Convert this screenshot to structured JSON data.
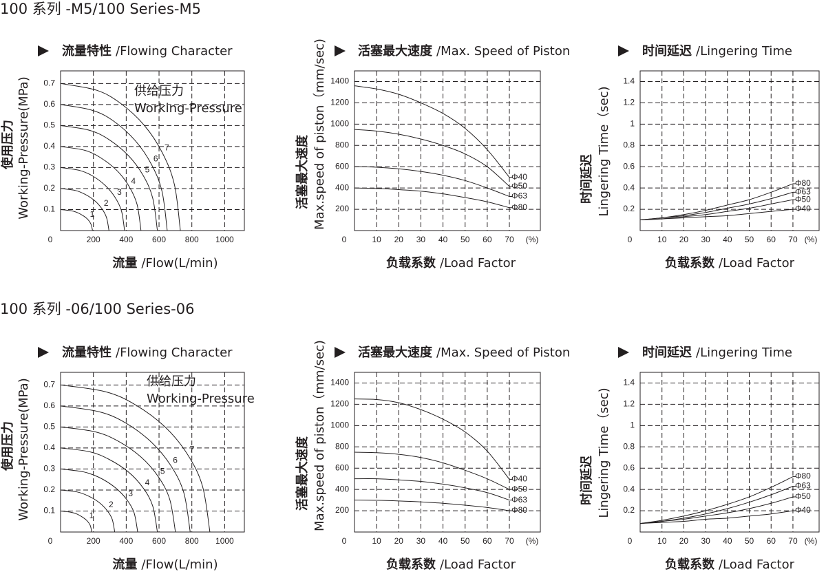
{
  "sections": [
    {
      "title": "100 系列 -M5/100 Series-M5"
    },
    {
      "title": "100 系列 -06/100 Series-06"
    }
  ],
  "chart_data": [
    {
      "type": "flow",
      "title": [
        "流量特性",
        "/Flowing Character"
      ],
      "xlabel": [
        "流量",
        "/Flow(L/min)"
      ],
      "ylabel": [
        "使用压力",
        "Working-Pressure(MPa)"
      ],
      "annotations": [
        "供给压力",
        "Working-Pressure"
      ],
      "xlim": [
        0,
        1120
      ],
      "ylim": [
        0,
        0.76
      ],
      "xticks": [
        0,
        200,
        400,
        600,
        800,
        1000
      ],
      "yticks": [
        0.1,
        0.2,
        0.3,
        0.4,
        0.5,
        0.6,
        0.7
      ],
      "grid": true,
      "color": "#231f20",
      "series": [
        {
          "name": "1",
          "x": [
            0,
            59,
            98,
            137,
            166,
            185,
            195
          ],
          "values": [
            0.1,
            0.095,
            0.087,
            0.071,
            0.053,
            0.031,
            0
          ]
        },
        {
          "name": "2",
          "x": [
            0,
            89,
            148,
            207,
            251,
            280,
            295
          ],
          "values": [
            0.2,
            0.191,
            0.173,
            0.143,
            0.105,
            0.062,
            0
          ]
        },
        {
          "name": "3",
          "x": [
            0,
            117,
            195,
            273,
            332,
            371,
            390
          ],
          "values": [
            0.3,
            0.286,
            0.26,
            0.214,
            0.158,
            0.094,
            0
          ]
        },
        {
          "name": "4",
          "x": [
            0,
            147,
            245,
            343,
            417,
            466,
            490
          ],
          "values": [
            0.4,
            0.382,
            0.346,
            0.286,
            0.211,
            0.125,
            0
          ]
        },
        {
          "name": "5",
          "x": [
            0,
            177,
            295,
            413,
            502,
            561,
            590
          ],
          "values": [
            0.5,
            0.477,
            0.433,
            0.357,
            0.264,
            0.156,
            0
          ]
        },
        {
          "name": "6",
          "x": [
            0,
            195,
            325,
            455,
            553,
            618,
            650
          ],
          "values": [
            0.6,
            0.572,
            0.52,
            0.428,
            0.316,
            0.187,
            0
          ]
        },
        {
          "name": "7",
          "x": [
            0,
            219,
            365,
            511,
            621,
            694,
            730
          ],
          "values": [
            0.7,
            0.668,
            0.606,
            0.5,
            0.369,
            0.218,
            0
          ]
        }
      ]
    },
    {
      "type": "line",
      "title": [
        "活塞最大速度",
        "/Max. Speed of Piston"
      ],
      "xlabel": [
        "负载系数",
        "/Load Factor"
      ],
      "ylabel": [
        "活塞最大速度",
        "Max.speed of piston（mm/sec)"
      ],
      "xunit": "(%)",
      "xlim": [
        0,
        84
      ],
      "ylim": [
        0,
        1500
      ],
      "xticks": [
        0,
        10,
        20,
        30,
        40,
        50,
        60,
        70
      ],
      "yticks": [
        200,
        400,
        600,
        800,
        1000,
        1200,
        1400
      ],
      "grid": true,
      "color": "#231f20",
      "x": [
        0,
        10,
        20,
        30,
        40,
        50,
        60,
        70
      ],
      "series": [
        {
          "name": "Φ40",
          "values": [
            1360,
            1330,
            1280,
            1200,
            1100,
            960,
            760,
            500
          ]
        },
        {
          "name": "Φ50",
          "values": [
            950,
            935,
            905,
            860,
            800,
            720,
            600,
            415
          ]
        },
        {
          "name": "Φ63",
          "values": [
            600,
            595,
            580,
            555,
            520,
            470,
            400,
            320
          ]
        },
        {
          "name": "Φ80",
          "values": [
            400,
            395,
            385,
            370,
            345,
            310,
            270,
            215
          ]
        }
      ]
    },
    {
      "type": "line",
      "title": [
        "时间延迟",
        "/Lingering Time"
      ],
      "xlabel": [
        "负载系数",
        "/Load Factor"
      ],
      "ylabel": [
        "时间延迟",
        "Lingering Time（sec)"
      ],
      "xunit": "(%)",
      "xlim": [
        0,
        82
      ],
      "ylim": [
        0,
        1.5
      ],
      "xticks": [
        0,
        10,
        20,
        30,
        40,
        50,
        60,
        70
      ],
      "yticks": [
        0.2,
        0.4,
        0.6,
        0.8,
        1.0,
        1.2,
        1.4
      ],
      "grid": true,
      "color": "#231f20",
      "x": [
        0,
        10,
        20,
        30,
        40,
        50,
        60,
        70
      ],
      "series": [
        {
          "name": "Φ80",
          "values": [
            0.1,
            0.12,
            0.15,
            0.19,
            0.24,
            0.29,
            0.36,
            0.44
          ]
        },
        {
          "name": "Φ63",
          "values": [
            0.1,
            0.12,
            0.14,
            0.17,
            0.21,
            0.25,
            0.3,
            0.36
          ]
        },
        {
          "name": "Φ50",
          "values": [
            0.1,
            0.11,
            0.13,
            0.15,
            0.18,
            0.21,
            0.25,
            0.29
          ]
        },
        {
          "name": "Φ40",
          "values": [
            0.1,
            0.11,
            0.12,
            0.13,
            0.14,
            0.16,
            0.18,
            0.2
          ]
        }
      ]
    },
    {
      "type": "flow",
      "title": [
        "流量特性",
        "/Flowing Character"
      ],
      "xlabel": [
        "流量",
        "/Flow(L/min)"
      ],
      "ylabel": [
        "使用压力",
        "Working-Pressure(MPa)"
      ],
      "annotations": [
        "供给压力",
        "Working-Pressure"
      ],
      "xlim": [
        0,
        1120
      ],
      "ylim": [
        0,
        0.76
      ],
      "xticks": [
        0,
        200,
        400,
        600,
        800,
        1000
      ],
      "yticks": [
        0.1,
        0.2,
        0.3,
        0.4,
        0.5,
        0.6,
        0.7
      ],
      "grid": true,
      "color": "#231f20",
      "series": [
        {
          "name": "1",
          "x": [
            0,
            57,
            95,
            133,
            162,
            181,
            190
          ],
          "values": [
            0.1,
            0.095,
            0.087,
            0.071,
            0.053,
            0.031,
            0
          ]
        },
        {
          "name": "2",
          "x": [
            0,
            99,
            165,
            231,
            281,
            314,
            330
          ],
          "values": [
            0.2,
            0.191,
            0.173,
            0.143,
            0.105,
            0.062,
            0
          ]
        },
        {
          "name": "3",
          "x": [
            0,
            141,
            235,
            329,
            400,
            447,
            470
          ],
          "values": [
            0.3,
            0.286,
            0.26,
            0.214,
            0.158,
            0.094,
            0
          ]
        },
        {
          "name": "4",
          "x": [
            0,
            177,
            295,
            413,
            502,
            561,
            590
          ],
          "values": [
            0.4,
            0.382,
            0.346,
            0.286,
            0.211,
            0.125,
            0
          ]
        },
        {
          "name": "5",
          "x": [
            0,
            210,
            350,
            490,
            595,
            665,
            700
          ],
          "values": [
            0.5,
            0.477,
            0.433,
            0.357,
            0.264,
            0.156,
            0
          ]
        },
        {
          "name": "6",
          "x": [
            0,
            237,
            395,
            553,
            672,
            751,
            790
          ],
          "values": [
            0.6,
            0.572,
            0.52,
            0.428,
            0.316,
            0.187,
            0
          ]
        },
        {
          "name": "7",
          "x": [
            0,
            273,
            455,
            637,
            774,
            865,
            910
          ],
          "values": [
            0.7,
            0.668,
            0.606,
            0.5,
            0.369,
            0.218,
            0
          ]
        }
      ]
    },
    {
      "type": "line",
      "title": [
        "活塞最大速度",
        "/Max. Speed of Piston"
      ],
      "xlabel": [
        "负载系数",
        "/Load Factor"
      ],
      "ylabel": [
        "活塞最大速度",
        "Max.speed of piston（mm/sec)"
      ],
      "xunit": "(%)",
      "xlim": [
        0,
        84
      ],
      "ylim": [
        0,
        1500
      ],
      "xticks": [
        0,
        10,
        20,
        30,
        40,
        50,
        60,
        70
      ],
      "yticks": [
        200,
        400,
        600,
        800,
        1000,
        1200,
        1400
      ],
      "grid": true,
      "color": "#231f20",
      "x": [
        0,
        10,
        20,
        30,
        40,
        50,
        60,
        70
      ],
      "series": [
        {
          "name": "Φ40",
          "values": [
            1250,
            1245,
            1215,
            1150,
            1060,
            940,
            760,
            495
          ]
        },
        {
          "name": "Φ50",
          "values": [
            750,
            745,
            730,
            700,
            650,
            580,
            500,
            400
          ]
        },
        {
          "name": "Φ63",
          "values": [
            500,
            500,
            490,
            475,
            450,
            415,
            370,
            300
          ]
        },
        {
          "name": "Φ80",
          "values": [
            300,
            298,
            292,
            283,
            270,
            252,
            230,
            200
          ]
        }
      ]
    },
    {
      "type": "line",
      "title": [
        "时间延迟",
        "/Lingering Time"
      ],
      "xlabel": [
        "负载系数",
        "/Load Factor"
      ],
      "ylabel": [
        "时间延迟",
        "Lingering Time（sec)"
      ],
      "xunit": "(%)",
      "xlim": [
        0,
        82
      ],
      "ylim": [
        0,
        1.5
      ],
      "xticks": [
        0,
        10,
        20,
        30,
        40,
        50,
        60,
        70
      ],
      "yticks": [
        0.2,
        0.4,
        0.6,
        0.8,
        1.0,
        1.2,
        1.4
      ],
      "grid": true,
      "color": "#231f20",
      "x": [
        0,
        10,
        20,
        30,
        40,
        50,
        60,
        70
      ],
      "series": [
        {
          "name": "Φ80",
          "values": [
            0.08,
            0.11,
            0.15,
            0.2,
            0.26,
            0.33,
            0.42,
            0.52
          ]
        },
        {
          "name": "Φ63",
          "values": [
            0.08,
            0.1,
            0.13,
            0.17,
            0.22,
            0.28,
            0.35,
            0.43
          ]
        },
        {
          "name": "Φ50",
          "values": [
            0.08,
            0.1,
            0.12,
            0.15,
            0.18,
            0.22,
            0.27,
            0.33
          ]
        },
        {
          "name": "Φ40",
          "values": [
            0.08,
            0.09,
            0.1,
            0.12,
            0.13,
            0.15,
            0.17,
            0.2
          ]
        }
      ]
    }
  ]
}
